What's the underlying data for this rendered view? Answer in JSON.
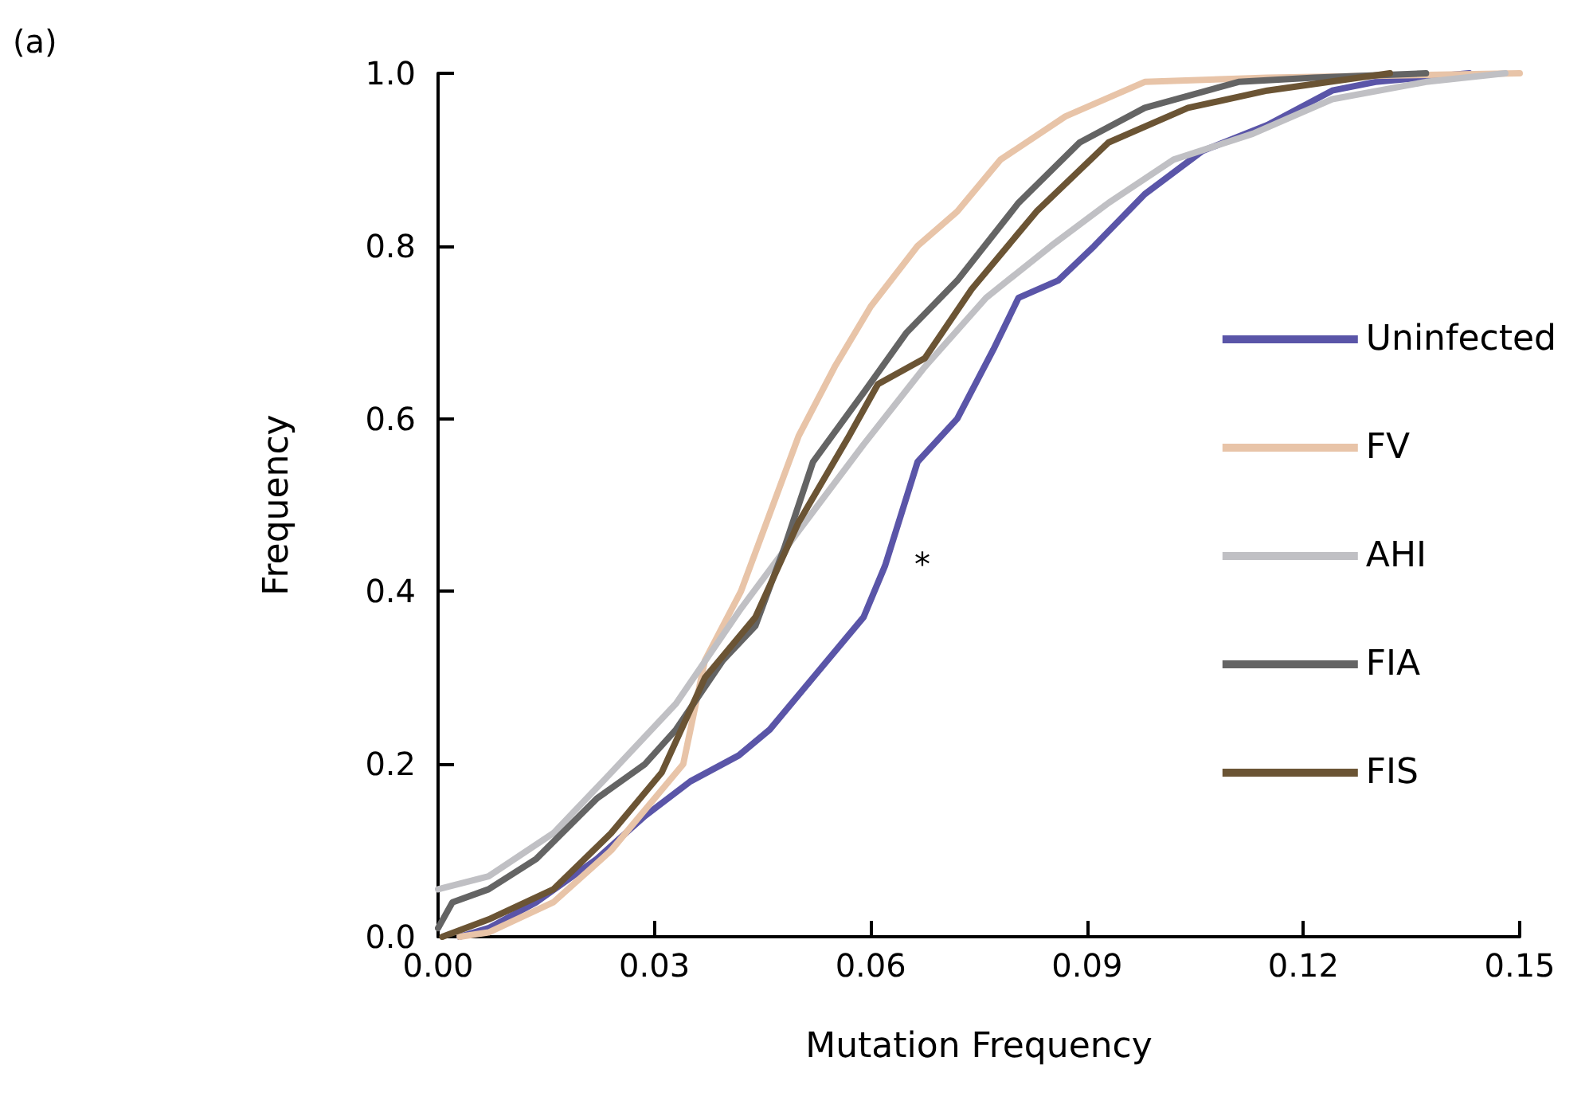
{
  "chart_data": {
    "type": "line",
    "xlabel": "Mutation Frequency",
    "ylabel": "Frequency",
    "xlim": [
      0,
      0.15
    ],
    "xticks": [
      {
        "value": 0,
        "label": "0.00"
      },
      {
        "value": 0.03,
        "label": "0.03"
      },
      {
        "value": 0.06,
        "label": "0.06"
      },
      {
        "value": 0.09,
        "label": "0.09"
      },
      {
        "value": 0.12,
        "label": "0.12"
      },
      {
        "value": 0.15,
        "label": "0.15"
      }
    ],
    "ylim": [
      0,
      1
    ],
    "yticks": [
      {
        "value": 0,
        "label": "0.0"
      },
      {
        "value": 0.2,
        "label": "0.2"
      },
      {
        "value": 0.4,
        "label": "0.4"
      },
      {
        "value": 0.6,
        "label": "0.6"
      },
      {
        "value": 0.8,
        "label": "0.8"
      },
      {
        "value": 1,
        "label": "1.0"
      }
    ],
    "grid": false,
    "legend": "right",
    "marker": "none",
    "line_style": "solid",
    "annotations": [
      "(a)",
      "*"
    ],
    "series": [
      {
        "name": "Uninfected",
        "color": "#5a55a8",
        "x": [
          0.003,
          0.007,
          0.0136,
          0.022,
          0.0287,
          0.035,
          0.0417,
          0.046,
          0.052,
          0.059,
          0.062,
          0.0665,
          0.072,
          0.077,
          0.0805,
          0.086,
          0.091,
          0.098,
          0.106,
          0.115,
          0.124,
          0.13,
          0.143
        ],
        "values": [
          0,
          0.01,
          0.04,
          0.09,
          0.14,
          0.18,
          0.21,
          0.24,
          0.3,
          0.37,
          0.43,
          0.55,
          0.6,
          0.68,
          0.74,
          0.76,
          0.8,
          0.86,
          0.91,
          0.94,
          0.98,
          0.99,
          1
        ]
      },
      {
        "name": "FV",
        "color": "#e8c4a8",
        "x": [
          0.003,
          0.007,
          0.016,
          0.024,
          0.031,
          0.034,
          0.037,
          0.042,
          0.046,
          0.05,
          0.055,
          0.06,
          0.0665,
          0.072,
          0.078,
          0.087,
          0.098,
          0.115,
          0.15
        ],
        "values": [
          0,
          0.005,
          0.04,
          0.1,
          0.17,
          0.2,
          0.32,
          0.4,
          0.49,
          0.58,
          0.66,
          0.73,
          0.8,
          0.84,
          0.9,
          0.95,
          0.99,
          0.995,
          1
        ]
      },
      {
        "name": "AHI",
        "color": "#c0c0c4",
        "x": [
          0,
          0.007,
          0.016,
          0.024,
          0.033,
          0.042,
          0.05,
          0.059,
          0.0675,
          0.076,
          0.085,
          0.093,
          0.102,
          0.113,
          0.124,
          0.137,
          0.148
        ],
        "values": [
          0.055,
          0.07,
          0.12,
          0.19,
          0.27,
          0.38,
          0.47,
          0.57,
          0.66,
          0.74,
          0.8,
          0.85,
          0.9,
          0.93,
          0.97,
          0.99,
          1
        ]
      },
      {
        "name": "FIA",
        "color": "#646464",
        "x": [
          0,
          0.002,
          0.007,
          0.0136,
          0.022,
          0.0287,
          0.033,
          0.0395,
          0.044,
          0.048,
          0.052,
          0.059,
          0.065,
          0.072,
          0.0805,
          0.089,
          0.098,
          0.111,
          0.1215,
          0.137
        ],
        "values": [
          0.01,
          0.04,
          0.055,
          0.09,
          0.16,
          0.2,
          0.24,
          0.32,
          0.36,
          0.45,
          0.55,
          0.63,
          0.7,
          0.76,
          0.85,
          0.92,
          0.96,
          0.99,
          0.995,
          1
        ]
      },
      {
        "name": "FIS",
        "color": "#6b5434",
        "x": [
          0.0006,
          0.007,
          0.016,
          0.024,
          0.031,
          0.037,
          0.044,
          0.05,
          0.057,
          0.061,
          0.0675,
          0.074,
          0.083,
          0.093,
          0.104,
          0.115,
          0.132
        ],
        "values": [
          0,
          0.02,
          0.055,
          0.12,
          0.19,
          0.3,
          0.37,
          0.48,
          0.58,
          0.64,
          0.67,
          0.75,
          0.84,
          0.92,
          0.96,
          0.98,
          1
        ]
      }
    ]
  }
}
